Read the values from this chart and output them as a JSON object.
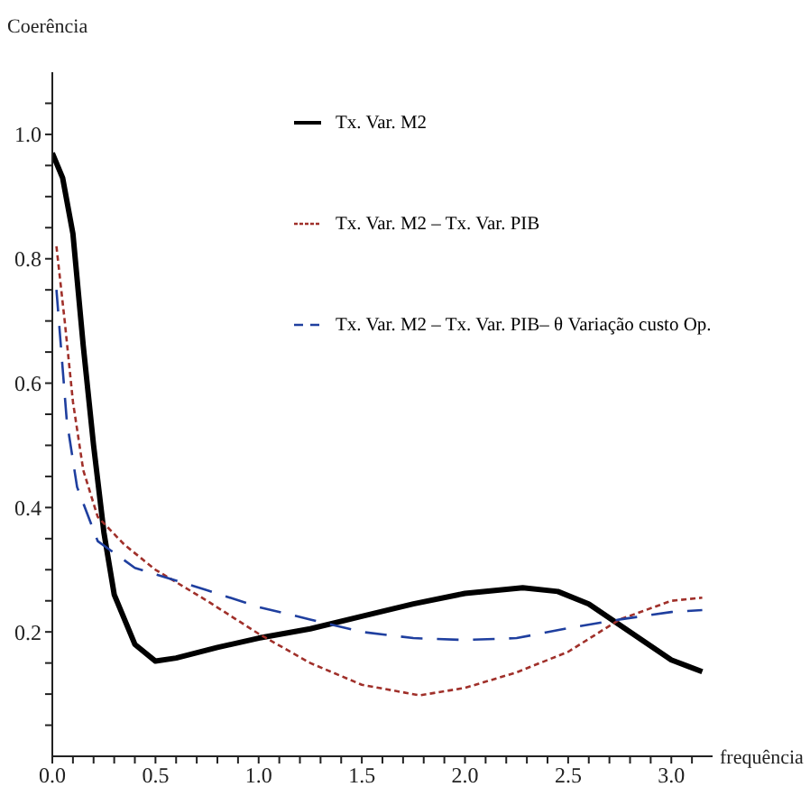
{
  "chart_data": {
    "type": "line",
    "xlabel": "frequência",
    "ylabel": "Coerência",
    "xlim": [
      0,
      3.2
    ],
    "ylim": [
      0,
      1.1
    ],
    "xticks": [
      {
        "value": 0,
        "label": "0.0"
      },
      {
        "value": 0.1,
        "label": null
      },
      {
        "value": 0.2,
        "label": null
      },
      {
        "value": 0.3,
        "label": null
      },
      {
        "value": 0.4,
        "label": null
      },
      {
        "value": 0.5,
        "label": "0.5"
      },
      {
        "value": 0.6,
        "label": null
      },
      {
        "value": 0.7,
        "label": null
      },
      {
        "value": 0.8,
        "label": null
      },
      {
        "value": 0.9,
        "label": null
      },
      {
        "value": 1,
        "label": "1.0"
      },
      {
        "value": 1.1,
        "label": null
      },
      {
        "value": 1.2,
        "label": null
      },
      {
        "value": 1.3,
        "label": null
      },
      {
        "value": 1.4,
        "label": null
      },
      {
        "value": 1.5,
        "label": "1.5"
      },
      {
        "value": 1.6,
        "label": null
      },
      {
        "value": 1.7,
        "label": null
      },
      {
        "value": 1.8,
        "label": null
      },
      {
        "value": 1.9,
        "label": null
      },
      {
        "value": 2,
        "label": "2.0"
      },
      {
        "value": 2.1,
        "label": null
      },
      {
        "value": 2.2,
        "label": null
      },
      {
        "value": 2.3,
        "label": null
      },
      {
        "value": 2.4,
        "label": null
      },
      {
        "value": 2.5,
        "label": "2.5"
      },
      {
        "value": 2.6,
        "label": null
      },
      {
        "value": 2.7,
        "label": null
      },
      {
        "value": 2.8,
        "label": null
      },
      {
        "value": 2.9,
        "label": null
      },
      {
        "value": 3,
        "label": "3.0"
      },
      {
        "value": 3.1,
        "label": null
      }
    ],
    "yticks": [
      {
        "value": 0.05,
        "label": null
      },
      {
        "value": 0.1,
        "label": null
      },
      {
        "value": 0.15,
        "label": null
      },
      {
        "value": 0.2,
        "label": "0.2"
      },
      {
        "value": 0.25,
        "label": null
      },
      {
        "value": 0.3,
        "label": null
      },
      {
        "value": 0.35,
        "label": null
      },
      {
        "value": 0.4,
        "label": "0.4"
      },
      {
        "value": 0.45,
        "label": null
      },
      {
        "value": 0.5,
        "label": null
      },
      {
        "value": 0.55,
        "label": null
      },
      {
        "value": 0.6,
        "label": "0.6"
      },
      {
        "value": 0.65,
        "label": null
      },
      {
        "value": 0.7,
        "label": null
      },
      {
        "value": 0.75,
        "label": null
      },
      {
        "value": 0.8,
        "label": "0.8"
      },
      {
        "value": 0.85,
        "label": null
      },
      {
        "value": 0.9,
        "label": null
      },
      {
        "value": 0.95,
        "label": null
      },
      {
        "value": 1,
        "label": "1.0"
      },
      {
        "value": 1.05,
        "label": null
      }
    ],
    "grid": false,
    "legend": "top right",
    "marker": "none",
    "series": [
      {
        "name": "Tx. Var. M2",
        "color": "#000000",
        "line_style": "solid",
        "x": [
          0,
          0.05,
          0.1,
          0.15,
          0.2,
          0.25,
          0.3,
          0.4,
          0.5,
          0.6,
          0.8,
          1,
          1.25,
          1.5,
          1.75,
          2,
          2.28,
          2.45,
          2.6,
          2.8,
          3,
          3.15
        ],
        "values": [
          0.97,
          0.93,
          0.84,
          0.66,
          0.5,
          0.36,
          0.26,
          0.18,
          0.153,
          0.158,
          0.175,
          0.19,
          0.205,
          0.225,
          0.245,
          0.262,
          0.271,
          0.265,
          0.245,
          0.2,
          0.155,
          0.136
        ]
      },
      {
        "name": "Tx. Var. M2 – Tx. Var. PIB",
        "color": "#a0302a",
        "line_style": "dotted",
        "x": [
          0.02,
          0.06,
          0.1,
          0.15,
          0.22,
          0.35,
          0.5,
          0.75,
          1,
          1.25,
          1.5,
          1.78,
          2,
          2.25,
          2.5,
          2.75,
          3,
          3.15
        ],
        "values": [
          0.82,
          0.7,
          0.57,
          0.46,
          0.385,
          0.34,
          0.3,
          0.25,
          0.197,
          0.15,
          0.115,
          0.098,
          0.11,
          0.135,
          0.168,
          0.22,
          0.25,
          0.255
        ]
      },
      {
        "name": "Tx. Var. M2 – Tx. Var. PIB– θ Variação custo Op.",
        "color": "#1f3f9f",
        "line_style": "dashed",
        "x": [
          0.02,
          0.07,
          0.12,
          0.22,
          0.4,
          0.75,
          1,
          1.25,
          1.5,
          1.75,
          2,
          2.25,
          2.5,
          2.75,
          3,
          3.15
        ],
        "values": [
          0.75,
          0.54,
          0.433,
          0.346,
          0.303,
          0.267,
          0.24,
          0.22,
          0.2,
          0.19,
          0.187,
          0.19,
          0.206,
          0.22,
          0.232,
          0.235
        ]
      }
    ]
  }
}
